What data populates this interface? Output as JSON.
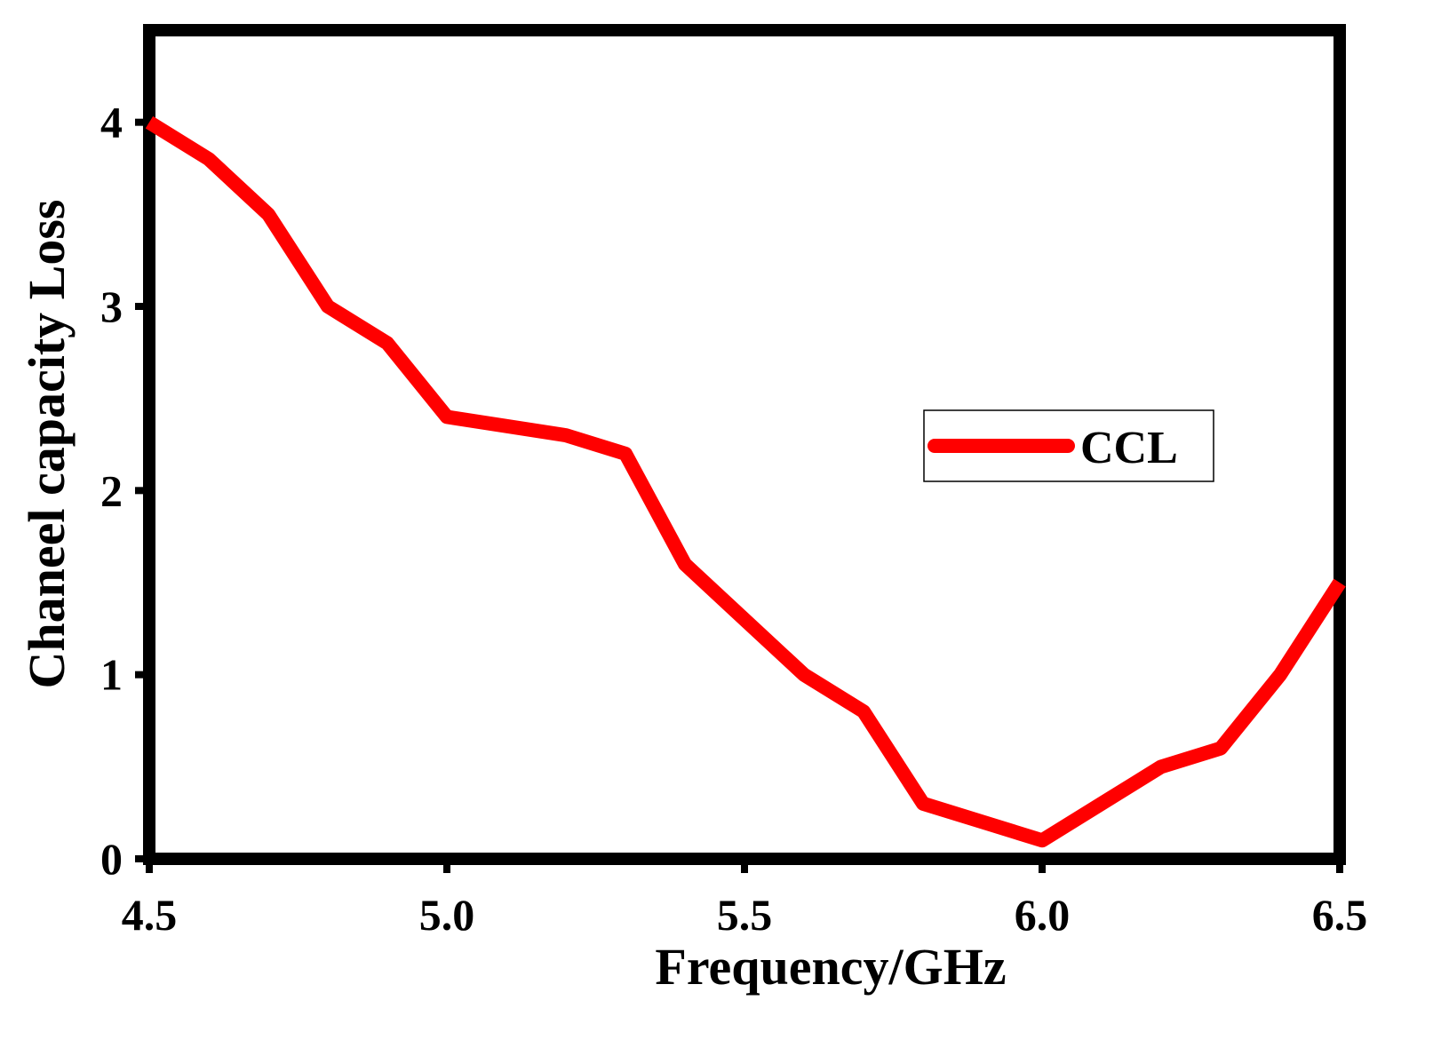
{
  "chart_data": {
    "type": "line",
    "title": "",
    "xlabel": "Frequency/GHz",
    "ylabel": "Chaneel capacity Loss",
    "xlim": [
      4.5,
      6.5
    ],
    "ylim": [
      0,
      4.5
    ],
    "xticks": [
      4.5,
      5.0,
      5.5,
      6.0,
      6.5
    ],
    "xtick_labels": [
      "4.5",
      "5.0",
      "5.5",
      "6.0",
      "6.5"
    ],
    "yticks": [
      0,
      1,
      2,
      3,
      4
    ],
    "ytick_labels": [
      "0",
      "1",
      "2",
      "3",
      "4"
    ],
    "grid": false,
    "legend_position": "right",
    "series": [
      {
        "name": "CCL",
        "color": "#ff0000",
        "x": [
          4.5,
          4.6,
          4.7,
          4.8,
          4.9,
          5.0,
          5.1,
          5.2,
          5.3,
          5.4,
          5.5,
          5.6,
          5.7,
          5.8,
          5.9,
          6.0,
          6.1,
          6.2,
          6.3,
          6.4,
          6.5
        ],
        "y": [
          4.0,
          3.8,
          3.5,
          3.0,
          2.8,
          2.4,
          2.35,
          2.3,
          2.2,
          1.6,
          1.3,
          1.0,
          0.8,
          0.3,
          0.2,
          0.1,
          0.3,
          0.5,
          0.6,
          1.0,
          1.5
        ]
      }
    ]
  }
}
